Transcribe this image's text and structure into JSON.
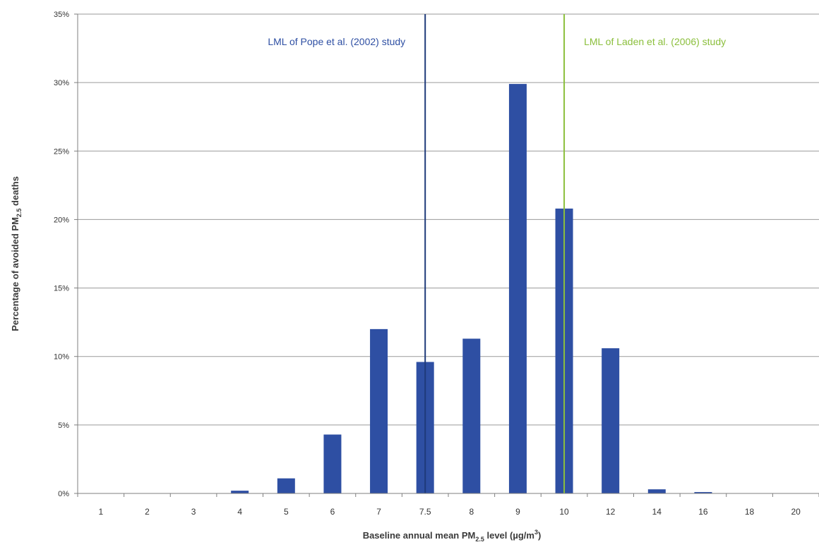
{
  "chart_data": {
    "type": "bar",
    "title": "",
    "xlabel": "Baseline annual mean PM2.5 level (µg/m³)",
    "xlabel_parts": {
      "pre": "Baseline annual mean PM",
      "sub": "2.5",
      "post": " level (µg/m",
      "sup": "3",
      "end": ")"
    },
    "ylabel": "Percentage of avoided PM2.5 deaths",
    "ylabel_parts": {
      "pre": "Percentage of avoided PM",
      "sub": "2.5",
      "post": " deaths"
    },
    "categories": [
      "1",
      "2",
      "3",
      "4",
      "5",
      "6",
      "7",
      "7.5",
      "8",
      "9",
      "10",
      "12",
      "14",
      "16",
      "18",
      "20"
    ],
    "values": [
      0,
      0,
      0,
      0.2,
      1.1,
      4.3,
      12.0,
      9.6,
      11.3,
      29.9,
      20.8,
      10.6,
      0.3,
      0.1,
      0,
      0
    ],
    "ylim": [
      0,
      35
    ],
    "yticks": [
      0,
      5,
      10,
      15,
      20,
      25,
      30,
      35
    ],
    "ytick_labels": [
      "0%",
      "5%",
      "10%",
      "15%",
      "20%",
      "25%",
      "30%",
      "35%"
    ],
    "grid": true,
    "bar_color": "#2e4fa3",
    "reference_lines": [
      {
        "category": "7.5",
        "label": "LML of Pope et al. (2002) study",
        "color": "#1f3a7a",
        "label_color": "#2e4fa3",
        "label_side": "left"
      },
      {
        "category": "10",
        "label": "LML of Laden et al. (2006) study",
        "color": "#8bbf3c",
        "label_color": "#8bbf3c",
        "label_side": "right"
      }
    ]
  }
}
